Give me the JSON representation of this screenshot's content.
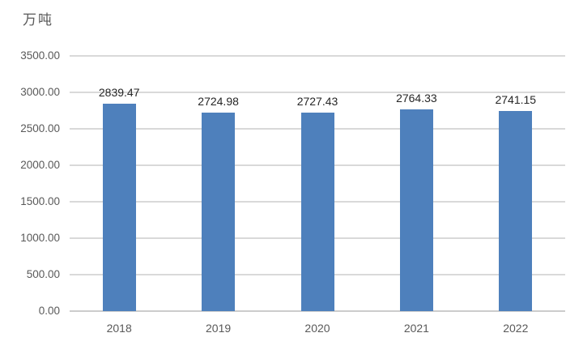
{
  "chart_data": {
    "type": "bar",
    "title": "万吨",
    "ylabel": "万吨",
    "xlabel": "",
    "categories": [
      "2018",
      "2019",
      "2020",
      "2021",
      "2022"
    ],
    "values": [
      2839.47,
      2724.98,
      2727.43,
      2764.33,
      2741.15
    ],
    "data_labels": [
      "2839.47",
      "2724.98",
      "2727.43",
      "2764.33",
      "2741.15"
    ],
    "ylim": [
      0,
      3500
    ],
    "ytick_step": 500,
    "ytick_labels": [
      "0.00",
      "500.00",
      "1000.00",
      "1500.00",
      "2000.00",
      "2500.00",
      "3000.00",
      "3500.00"
    ],
    "grid": true,
    "legend": false,
    "colors": {
      "bar": "#4e80bc",
      "gridline": "#d9d9d9",
      "axis_line": "#cccccc",
      "axis_text": "#595959",
      "data_label_text": "#262626",
      "background": "#ffffff"
    }
  }
}
